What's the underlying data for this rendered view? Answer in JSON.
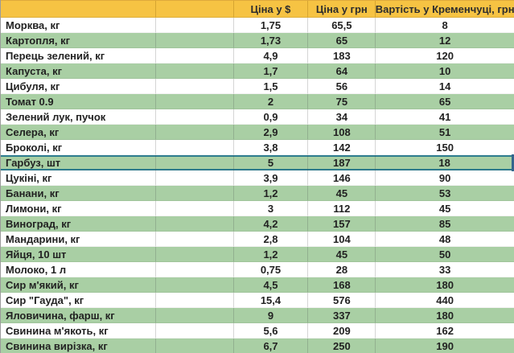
{
  "app": "spreadsheet-price-table",
  "table": {
    "columns": [
      {
        "key": "name",
        "label": ""
      },
      {
        "key": "spacer",
        "label": ""
      },
      {
        "key": "usd",
        "label": "Ціна у $"
      },
      {
        "key": "uah",
        "label": "Ціна у грн"
      },
      {
        "key": "kremenchuk",
        "label": "Вартість у Кременчуці, грн"
      }
    ],
    "rows": [
      {
        "name": "Морква, кг",
        "usd": "1,75",
        "uah": "65,5",
        "kremenchuk": "8",
        "selected": false
      },
      {
        "name": "Картопля, кг",
        "usd": "1,73",
        "uah": "65",
        "kremenchuk": "12",
        "selected": false
      },
      {
        "name": "Перець зелений, кг",
        "usd": "4,9",
        "uah": "183",
        "kremenchuk": "120",
        "selected": false
      },
      {
        "name": "Капуста, кг",
        "usd": "1,7",
        "uah": "64",
        "kremenchuk": "10",
        "selected": false
      },
      {
        "name": "Цибуля, кг",
        "usd": "1,5",
        "uah": "56",
        "kremenchuk": "14",
        "selected": false
      },
      {
        "name": "Томат 0.9",
        "usd": "2",
        "uah": "75",
        "kremenchuk": "65",
        "selected": false
      },
      {
        "name": "Зелений лук, пучок",
        "usd": "0,9",
        "uah": "34",
        "kremenchuk": "41",
        "selected": false
      },
      {
        "name": "Селера, кг",
        "usd": "2,9",
        "uah": "108",
        "kremenchuk": "51",
        "selected": false
      },
      {
        "name": "Броколі, кг",
        "usd": "3,8",
        "uah": "142",
        "kremenchuk": "150",
        "selected": false
      },
      {
        "name": "Гарбуз, шт",
        "usd": "5",
        "uah": "187",
        "kremenchuk": "18",
        "selected": true
      },
      {
        "name": "Цукіні, кг",
        "usd": "3,9",
        "uah": "146",
        "kremenchuk": "90",
        "selected": false
      },
      {
        "name": "Банани, кг",
        "usd": "1,2",
        "uah": "45",
        "kremenchuk": "53",
        "selected": false
      },
      {
        "name": "Лимони, кг",
        "usd": "3",
        "uah": "112",
        "kremenchuk": "45",
        "selected": false
      },
      {
        "name": "Виноград, кг",
        "usd": "4,2",
        "uah": "157",
        "kremenchuk": "85",
        "selected": false
      },
      {
        "name": "Мандарини, кг",
        "usd": "2,8",
        "uah": "104",
        "kremenchuk": "48",
        "selected": false
      },
      {
        "name": "Яйця, 10 шт",
        "usd": "1,2",
        "uah": "45",
        "kremenchuk": "50",
        "selected": false
      },
      {
        "name": "Молоко, 1 л",
        "usd": "0,75",
        "uah": "28",
        "kremenchuk": "33",
        "selected": false
      },
      {
        "name": "Сир м'який, кг",
        "usd": "4,5",
        "uah": "168",
        "kremenchuk": "180",
        "selected": false
      },
      {
        "name": "Сир \"Гауда\", кг",
        "usd": "15,4",
        "uah": "576",
        "kremenchuk": "440",
        "selected": false
      },
      {
        "name": "Яловичина, фарш, кг",
        "usd": "9",
        "uah": "337",
        "kremenchuk": "180",
        "selected": false
      },
      {
        "name": "Свинина м'якоть, кг",
        "usd": "5,6",
        "uah": "209",
        "kremenchuk": "162",
        "selected": false
      },
      {
        "name": "Свинина вирізка, кг",
        "usd": "6,7",
        "uah": "250",
        "kremenchuk": "190",
        "selected": false
      }
    ],
    "selection": {
      "selected_row_name": "Гарбуз, шт",
      "selected_row_number": 10
    }
  },
  "colors": {
    "header_bg": "#F6C343",
    "band_green": "#A9CFA4",
    "band_white": "#FFFFFF",
    "text": "#222222",
    "selection_border": "#2E7D8F",
    "selection_right_bar": "#33658C"
  }
}
